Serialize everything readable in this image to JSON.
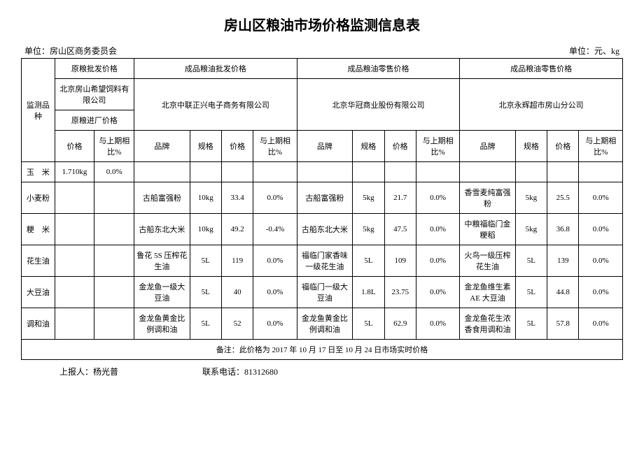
{
  "title": "房山区粮油市场价格监测信息表",
  "meta_left": "单位：房山区商务委员会",
  "meta_right": "单位：元、kg",
  "header": {
    "category": "监测品种",
    "group1": "原粮批发价格",
    "group2": "成品粮油批发价格",
    "group3": "成品粮油零售价格",
    "group4": "成品粮油零售价格",
    "company1": "北京房山希望饲料有限公司",
    "company2": "北京中联正兴电子商务有限公司",
    "company3": "北京华冠商业股份有限公司",
    "company4": "北京永辉超市房山分公司",
    "sub1": "原粮进厂价格",
    "col_price": "价格",
    "col_pct": "与上期相比%",
    "col_brand": "品牌",
    "col_spec": "规格"
  },
  "rows": [
    {
      "cat": "玉　米",
      "a_price": "1.710kg",
      "a_pct": "0.0%",
      "b_brand": "",
      "b_spec": "",
      "b_price": "",
      "b_pct": "",
      "c_brand": "",
      "c_spec": "",
      "c_price": "",
      "c_pct": "",
      "d_brand": "",
      "d_spec": "",
      "d_price": "",
      "d_pct": ""
    },
    {
      "cat": "小麦粉",
      "a_price": "",
      "a_pct": "",
      "b_brand": "古船富强粉",
      "b_spec": "10kg",
      "b_price": "33.4",
      "b_pct": "0.0%",
      "c_brand": "古船富强粉",
      "c_spec": "5kg",
      "c_price": "21.7",
      "c_pct": "0.0%",
      "d_brand": "香雪麦纯富强粉",
      "d_spec": "5kg",
      "d_price": "25.5",
      "d_pct": "0.0%"
    },
    {
      "cat": "粳　米",
      "a_price": "",
      "a_pct": "",
      "b_brand": "古船东北大米",
      "b_spec": "10kg",
      "b_price": "49.2",
      "b_pct": "-0.4%",
      "c_brand": "古船东北大米",
      "c_spec": "5kg",
      "c_price": "47.5",
      "c_pct": "0.0%",
      "d_brand": "中粮福临门金粳稻",
      "d_spec": "5kg",
      "d_price": "36.8",
      "d_pct": "0.0%"
    },
    {
      "cat": "花生油",
      "a_price": "",
      "a_pct": "",
      "b_brand": "鲁花 5S 压榨花生油",
      "b_spec": "5L",
      "b_price": "119",
      "b_pct": "0.0%",
      "c_brand": "福临门家香味一级花生油",
      "c_spec": "5L",
      "c_price": "109",
      "c_pct": "0.0%",
      "d_brand": "火鸟一级压榨花生油",
      "d_spec": "5L",
      "d_price": "139",
      "d_pct": "0.0%"
    },
    {
      "cat": "大豆油",
      "a_price": "",
      "a_pct": "",
      "b_brand": "金龙鱼一级大豆油",
      "b_spec": "5L",
      "b_price": "40",
      "b_pct": "0.0%",
      "c_brand": "福临门一级大豆油",
      "c_spec": "1.8L",
      "c_price": "23.75",
      "c_pct": "0.0%",
      "d_brand": "金龙鱼维生素 AE 大豆油",
      "d_spec": "5L",
      "d_price": "44.8",
      "d_pct": "0.0%"
    },
    {
      "cat": "调和油",
      "a_price": "",
      "a_pct": "",
      "b_brand": "金龙鱼黄金比例调和油",
      "b_spec": "5L",
      "b_price": "52",
      "b_pct": "0.0%",
      "c_brand": "金龙鱼黄金比例调和油",
      "c_spec": "5L",
      "c_price": "62.9",
      "c_pct": "0.0%",
      "d_brand": "金龙鱼花生浓香食用调和油",
      "d_spec": "5L",
      "d_price": "57.8",
      "d_pct": "0.0%"
    }
  ],
  "note": "备注：此价格为 2017 年 10 月 17 日至 10 月 24 日市场实时价格",
  "reporter_label": "上报人：杨光普",
  "phone_label": "联系电话：81312680"
}
